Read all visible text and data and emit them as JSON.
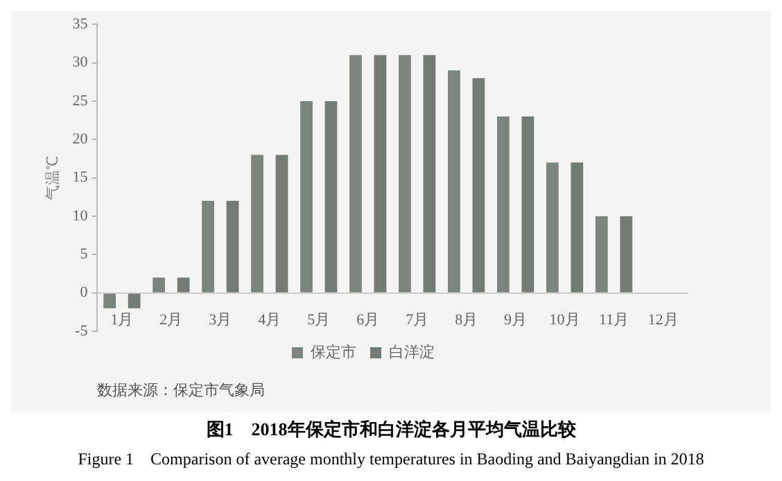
{
  "chart_data": {
    "type": "bar",
    "title": "图1　2018年保定市和白洋淀各月平均气温比较",
    "subtitle": "Figure 1　Comparison of average monthly temperatures in Baoding and Baiyangdian in 2018",
    "ylabel": "气温℃",
    "annotations": [
      "数据来源：保定市气象局"
    ],
    "categories": [
      "1月",
      "2月",
      "3月",
      "4月",
      "5月",
      "6月",
      "7月",
      "8月",
      "9月",
      "10月",
      "11月",
      "12月"
    ],
    "series": [
      {
        "name": "保定市",
        "color": "#7d837f",
        "values": [
          -2,
          2,
          12,
          18,
          25,
          31,
          31,
          29,
          23,
          17,
          10,
          null
        ]
      },
      {
        "name": "白洋淀",
        "color": "#747a76",
        "values": [
          -2,
          2,
          12,
          18,
          25,
          31,
          31,
          28,
          23,
          17,
          10,
          null
        ]
      }
    ],
    "ylim": [
      -5,
      35
    ],
    "yticks": [
      -5,
      0,
      5,
      10,
      15,
      20,
      25,
      30,
      35
    ],
    "grid": false,
    "legend": "bottom"
  }
}
